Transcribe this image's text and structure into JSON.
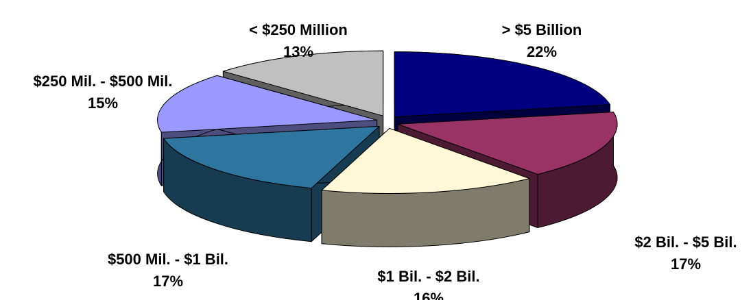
{
  "chart_data": {
    "type": "pie3d",
    "categories": [
      "> $5 Billion",
      "$2 Bil. - $5 Bil.",
      "$1 Bil. - $2 Bil.",
      "$500 Mil. - $1 Bil.",
      "$250 Mil. - $500 Mil.",
      "< $250 Million"
    ],
    "values": [
      22,
      17,
      16,
      17,
      15,
      13
    ],
    "value_labels": [
      "22%",
      "17%",
      "16%",
      "17%",
      "15%",
      "13%"
    ],
    "colors": [
      "#000080",
      "#993366",
      "#fff8d8",
      "#2e75a0",
      "#9999ff",
      "#c0c0c0"
    ]
  }
}
